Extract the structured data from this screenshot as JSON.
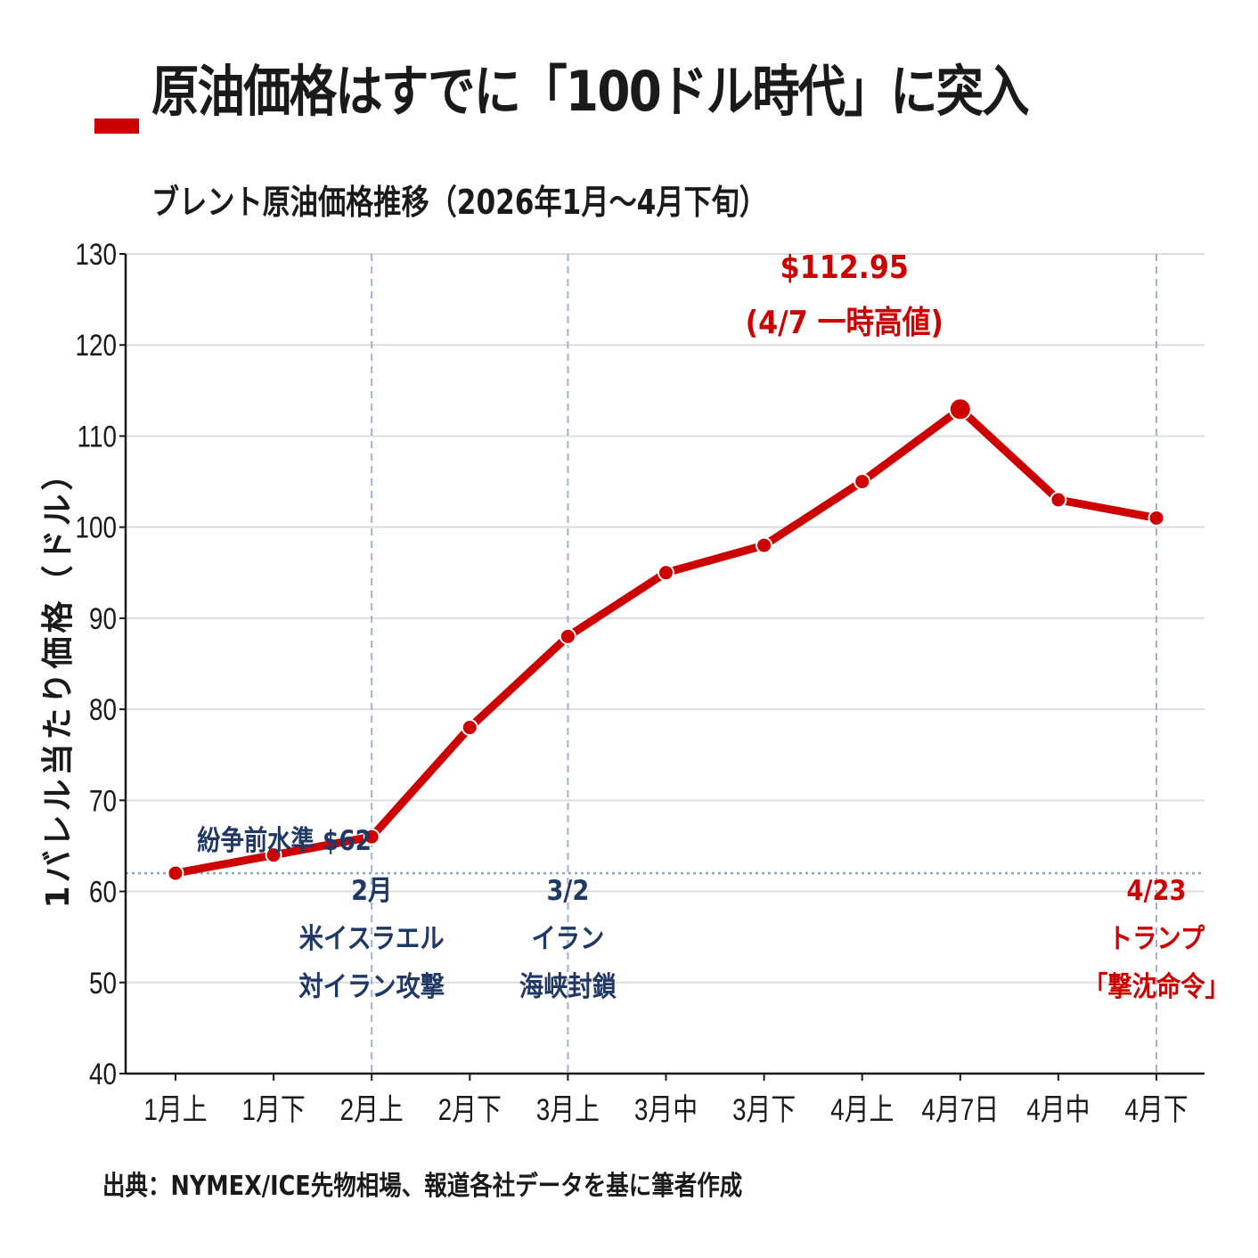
{
  "page": {
    "title": "原油価格はすでに「100ドル時代」に突入",
    "subtitle": "ブレント原油価格推移（2026年1月～4月下旬）",
    "source": "出典：NYMEX/ICE先物相場、報道各社データを基に筆者作成"
  },
  "chart_data": {
    "type": "line",
    "ylabel": "1バレル当たり価格（ドル）",
    "xlabel": "",
    "ylim": [
      40,
      130
    ],
    "yticks": [
      40,
      50,
      60,
      70,
      80,
      90,
      100,
      110,
      120,
      130
    ],
    "grid": true,
    "categories": [
      "1月上",
      "1月下",
      "2月上",
      "2月下",
      "3月上",
      "3月中",
      "3月下",
      "4月上",
      "4月7日",
      "4月中",
      "4月下"
    ],
    "series": [
      {
        "values": [
          62,
          64,
          66,
          78,
          88,
          95,
          98,
          105,
          112.95,
          103,
          101
        ],
        "color": "#cc0000"
      }
    ],
    "reference_line": {
      "value": 62,
      "label": "紛争前水準 $62",
      "color": "#8ea6c8"
    },
    "event_lines": [
      {
        "category_index": 2,
        "lines": [
          "2月",
          "米イスラエル",
          "対イラン攻撃"
        ],
        "color": "#1f3864"
      },
      {
        "category_index": 4,
        "lines": [
          "3/2",
          "イラン",
          "海峡封鎖"
        ],
        "color": "#1f3864"
      },
      {
        "category_index": 10,
        "lines": [
          "4/23",
          "トランプ",
          "「撃沈命令」"
        ],
        "color": "#cc0000"
      }
    ],
    "peak": {
      "category_index": 8,
      "lines": [
        "$112.95",
        "(4/7 一時高値)"
      ],
      "color": "#cc0000"
    }
  }
}
